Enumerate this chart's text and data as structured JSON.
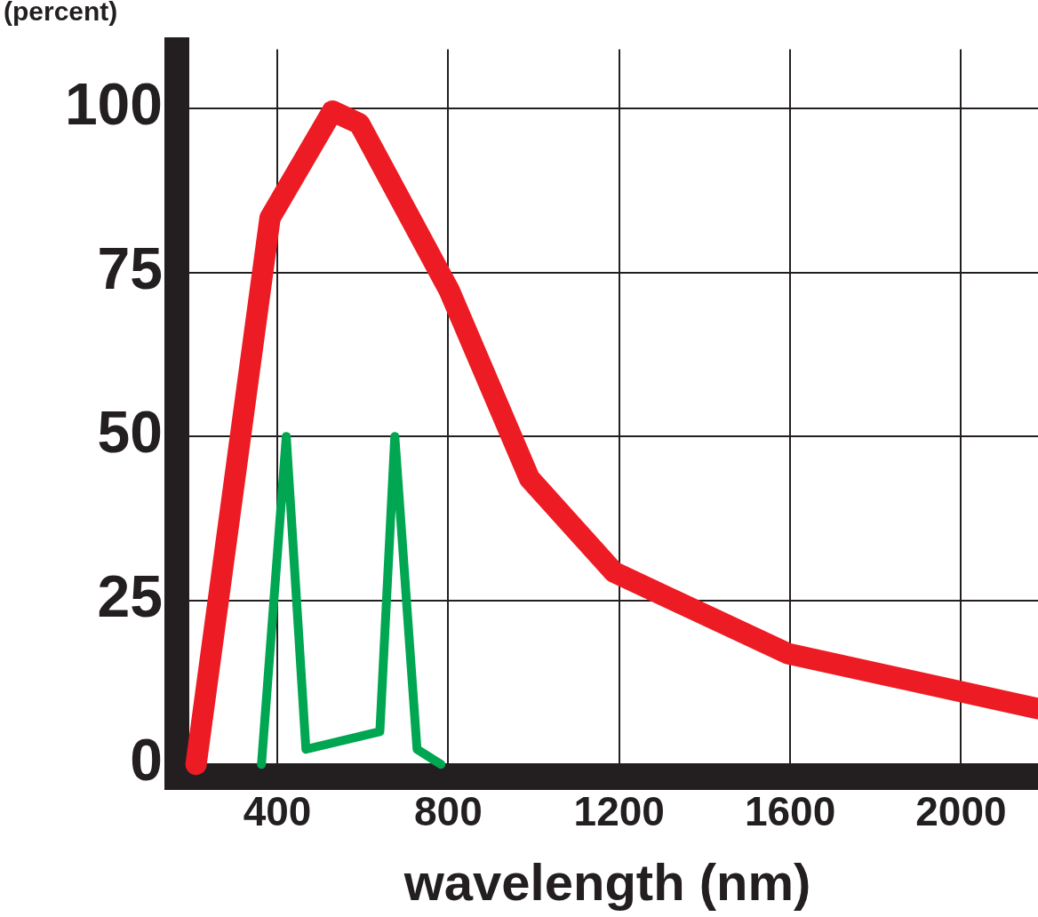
{
  "chart_data": {
    "type": "line",
    "xlabel": "wavelength (nm)",
    "ylabel": "(percent)",
    "xlim": [
      165,
      2180
    ],
    "xticks": [
      400,
      800,
      1200,
      1600,
      2000
    ],
    "ylim": [
      -2,
      109
    ],
    "yticks": [
      0,
      25,
      50,
      75,
      100
    ],
    "grid": true,
    "legend": false,
    "marker": "none",
    "line_style": "solid",
    "series": [
      {
        "color": "#ed1c24",
        "x": [
          210,
          383,
          529,
          592,
          802,
          990,
          1188,
          1594,
          2180
        ],
        "values": [
          0,
          83.3,
          99.6,
          97.7,
          72.3,
          43.6,
          29.3,
          16.9,
          8.5
        ]
      },
      {
        "color": "#00a651",
        "x": [
          363,
          421,
          467,
          640,
          675,
          727,
          783
        ],
        "values": [
          0,
          50,
          2.3,
          5,
          50,
          2.3,
          0
        ]
      }
    ]
  }
}
